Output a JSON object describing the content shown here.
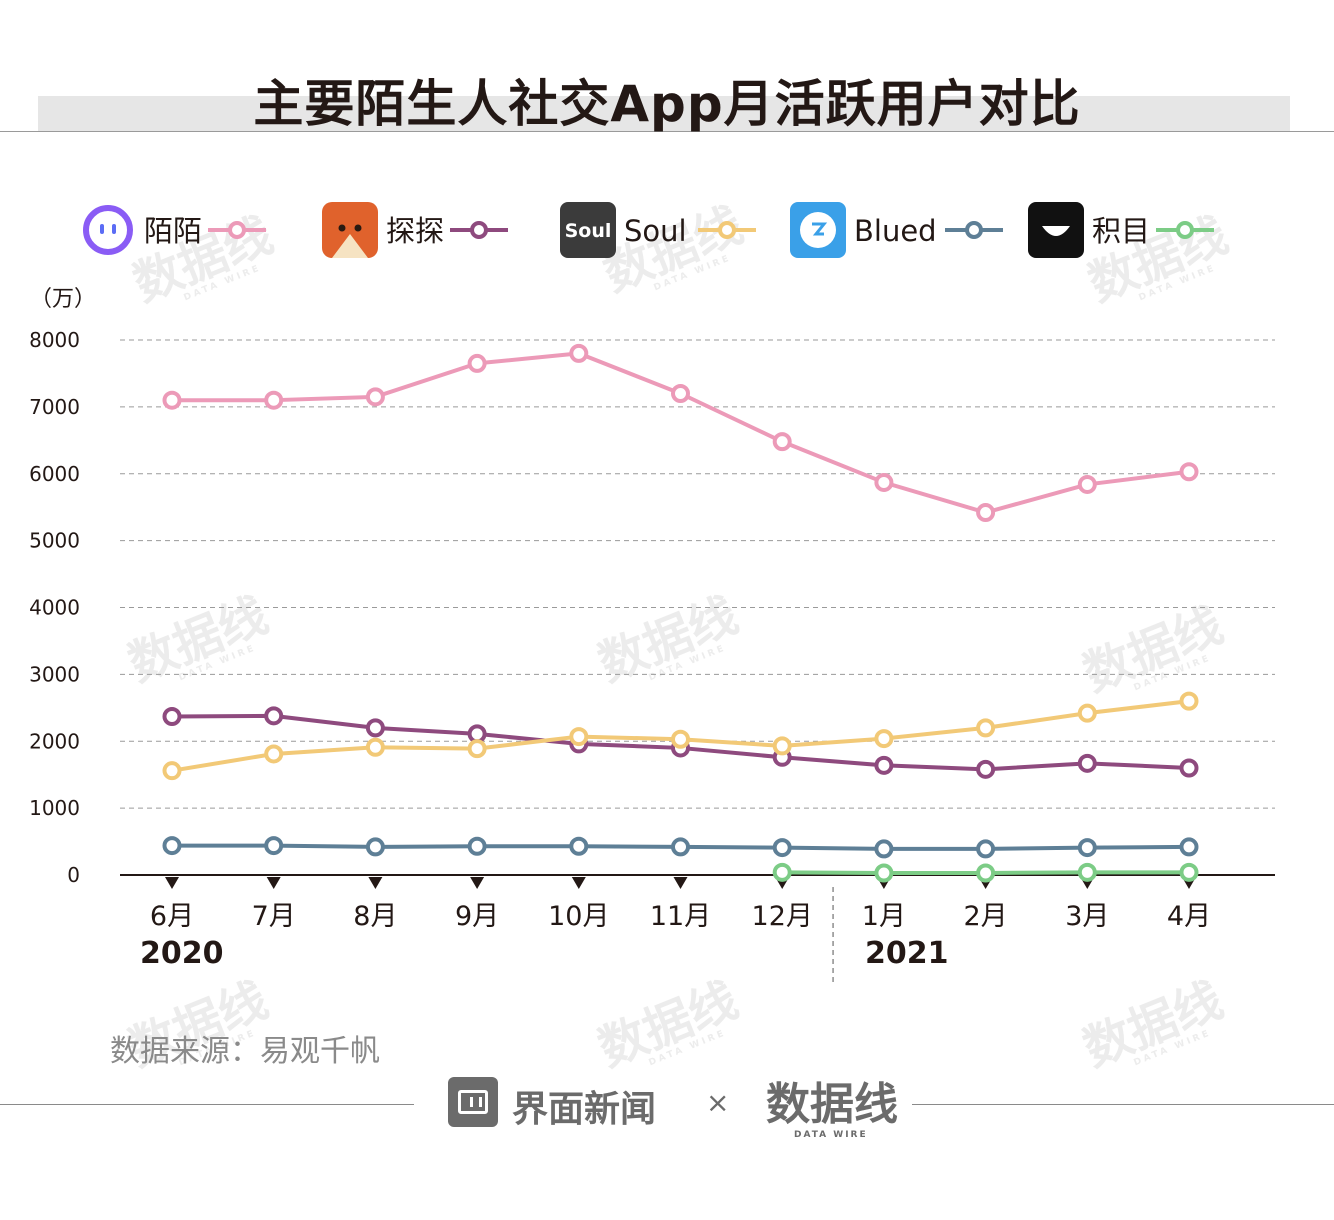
{
  "title": "主要陌生人社交App月活跃用户对比",
  "source": "数据来源：易观千帆",
  "footer": {
    "brand": "界面新闻",
    "separator": "×",
    "partner": "数据线",
    "partner_en": "DATA WIRE"
  },
  "watermark": {
    "text": "数据线",
    "sub": "DATA WIRE"
  },
  "chart_data": {
    "type": "line",
    "unit_label": "（万）",
    "categories": [
      "6月",
      "7月",
      "8月",
      "9月",
      "10月",
      "11月",
      "12月",
      "1月",
      "2月",
      "3月",
      "4月"
    ],
    "year_labels": [
      "2020",
      "2021"
    ],
    "ylim": [
      0,
      8000
    ],
    "yticks": [
      0,
      1000,
      2000,
      3000,
      4000,
      5000,
      6000,
      7000,
      8000
    ],
    "grid": true,
    "legend_position": "top",
    "series": [
      {
        "name": "陌陌",
        "color": "#ec9ab8",
        "icon": "momo-icon",
        "values": [
          7100,
          7100,
          7150,
          7650,
          7800,
          7200,
          6480,
          5870,
          5420,
          5840,
          6030
        ]
      },
      {
        "name": "探探",
        "color": "#8e4a7e",
        "icon": "tantan-icon",
        "values": [
          2370,
          2380,
          2200,
          2110,
          1960,
          1900,
          1760,
          1640,
          1580,
          1670,
          1600
        ]
      },
      {
        "name": "Soul",
        "color": "#f2c977",
        "icon": "soul-icon",
        "values": [
          1560,
          1810,
          1910,
          1890,
          2070,
          2030,
          1930,
          2040,
          2200,
          2420,
          2600
        ]
      },
      {
        "name": "Blued",
        "color": "#5e7f96",
        "icon": "blued-icon",
        "values": [
          440,
          440,
          420,
          430,
          430,
          420,
          410,
          390,
          390,
          410,
          420
        ]
      },
      {
        "name": "积目",
        "color": "#7ccc86",
        "icon": "jimu-icon",
        "values": [
          null,
          null,
          null,
          null,
          null,
          null,
          40,
          30,
          30,
          40,
          40
        ]
      }
    ]
  }
}
